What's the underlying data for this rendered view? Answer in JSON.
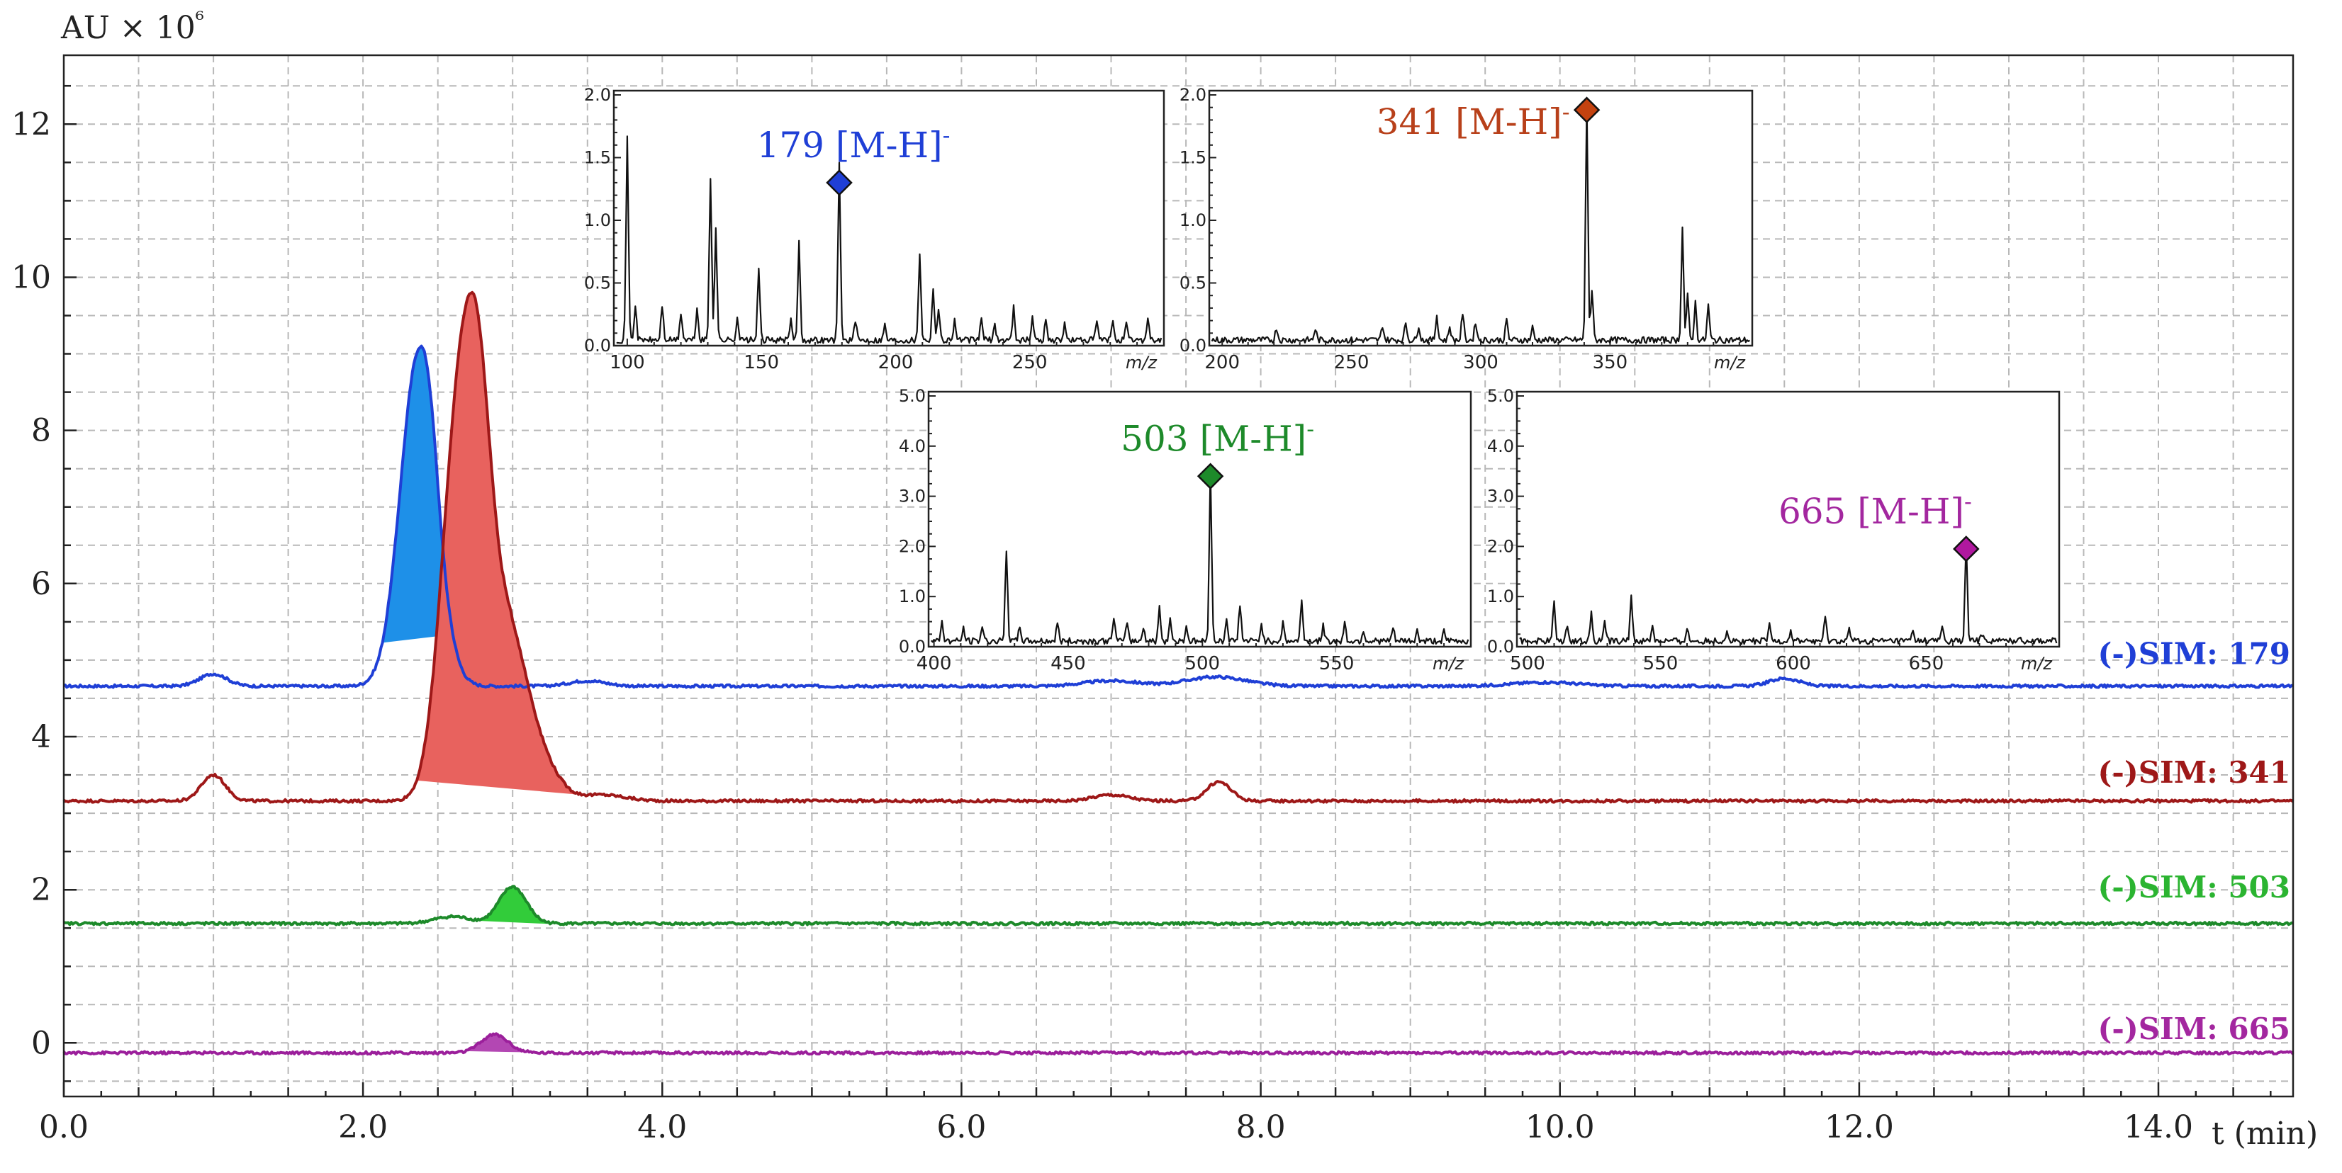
{
  "chart_data": {
    "type": "line",
    "title": "",
    "xlabel": "t (min)",
    "ylabel": "AU × 10⁶",
    "xlim": [
      0,
      14.9
    ],
    "ylim": [
      -0.7,
      12.9
    ],
    "x_ticks": [
      0,
      2,
      4,
      6,
      8,
      10,
      12,
      14
    ],
    "x_tick_labels": [
      "0.0",
      "2.0",
      "4.0",
      "6.0",
      "8.0",
      "10.0",
      "12.0",
      "14.0"
    ],
    "y_ticks": [
      0,
      2,
      4,
      6,
      8,
      10,
      12
    ],
    "y_tick_labels": [
      "0",
      "2",
      "4",
      "6",
      "8",
      "10",
      "12"
    ],
    "grid": true,
    "series": [
      {
        "name": "(-)SIM: 179",
        "color": "#1f3fd6",
        "fill": "#1e90e8",
        "baseline": 4.66,
        "bumps": [
          [
            1.0,
            0.16,
            0.09
          ],
          [
            2.37,
            4.3,
            0.12
          ],
          [
            2.45,
            0.4,
            0.05
          ],
          [
            3.5,
            0.07,
            0.12
          ],
          [
            7.0,
            0.07,
            0.18
          ],
          [
            7.7,
            0.12,
            0.2
          ],
          [
            9.9,
            0.05,
            0.22
          ],
          [
            11.5,
            0.1,
            0.1
          ]
        ],
        "fill_range": [
          2.12,
          2.6
        ]
      },
      {
        "name": "(-)SIM: 341",
        "color": "#9e1818",
        "fill": "#e8625e",
        "baseline": 3.16,
        "bumps": [
          [
            1.0,
            0.34,
            0.08
          ],
          [
            2.65,
            5.2,
            0.12
          ],
          [
            2.78,
            2.2,
            0.08
          ],
          [
            2.95,
            2.3,
            0.14
          ],
          [
            3.2,
            0.35,
            0.12
          ],
          [
            3.6,
            0.08,
            0.15
          ],
          [
            7.0,
            0.08,
            0.12
          ],
          [
            7.72,
            0.25,
            0.08
          ]
        ],
        "fill_range": [
          2.35,
          3.5
        ]
      },
      {
        "name": "(-)SIM: 503",
        "color": "#1d8a2a",
        "fill": "#32cc3a",
        "baseline": 1.56,
        "bumps": [
          [
            2.6,
            0.09,
            0.12
          ],
          [
            3.0,
            0.48,
            0.09
          ]
        ],
        "fill_range": [
          2.75,
          3.25
        ]
      },
      {
        "name": "(-)SIM: 665",
        "color": "#9b1f9b",
        "fill": "#b347b3",
        "baseline": -0.13,
        "bumps": [
          [
            2.88,
            0.24,
            0.09
          ]
        ],
        "fill_range": [
          2.65,
          3.15
        ]
      }
    ],
    "series_labels": [
      {
        "text": "(-)SIM: 179",
        "color": "#1f3fd6",
        "y": 4.95
      },
      {
        "text": "(-)SIM: 341",
        "color": "#9e1818",
        "y": 3.4
      },
      {
        "text": "(-)SIM: 503",
        "color": "#2bb431",
        "y": 1.9
      },
      {
        "text": "(-)SIM: 665",
        "color": "#a3279f",
        "y": 0.05
      }
    ],
    "insets": [
      {
        "annotation": "179 [M-H]-",
        "annotation_main": "179 [M-H]",
        "annotation_sup": "-",
        "color": "#1f3fd6",
        "marker_color": "#1f3fd6",
        "xlabel": "m/z",
        "xlim": [
          95,
          300
        ],
        "ylim": [
          0,
          2.0
        ],
        "x_ticks": [
          100,
          150,
          200,
          250
        ],
        "x_tick_labels": [
          "100",
          "150",
          "200",
          "250"
        ],
        "y_ticks": [
          0,
          0.5,
          1.0,
          1.5,
          2.0
        ],
        "y_tick_labels": [
          "0.0",
          "0.5",
          "1.0",
          "1.5",
          "2.0"
        ],
        "marker": [
          179,
          1.3
        ],
        "peaks": [
          [
            100,
            1.6
          ],
          [
            103,
            0.28
          ],
          [
            113,
            0.28
          ],
          [
            120,
            0.22
          ],
          [
            126,
            0.25
          ],
          [
            131,
            1.3
          ],
          [
            133,
            0.9
          ],
          [
            141,
            0.18
          ],
          [
            149,
            0.55
          ],
          [
            161,
            0.15
          ],
          [
            164,
            0.78
          ],
          [
            179,
            1.4
          ],
          [
            185,
            0.15
          ],
          [
            196,
            0.12
          ],
          [
            209,
            0.7
          ],
          [
            214,
            0.42
          ],
          [
            216,
            0.25
          ],
          [
            222,
            0.16
          ],
          [
            232,
            0.18
          ],
          [
            237,
            0.12
          ],
          [
            244,
            0.26
          ],
          [
            251,
            0.18
          ],
          [
            256,
            0.16
          ],
          [
            263,
            0.12
          ],
          [
            275,
            0.15
          ],
          [
            281,
            0.15
          ],
          [
            286,
            0.12
          ],
          [
            294,
            0.18
          ]
        ]
      },
      {
        "annotation": "341 [M-H]-",
        "annotation_main": "341 [M-H]",
        "annotation_sup": "-",
        "color": "#b8401a",
        "marker_color": "#c4420f",
        "xlabel": "m/z",
        "xlim": [
          195,
          405
        ],
        "ylim": [
          0,
          2.0
        ],
        "x_ticks": [
          200,
          250,
          300,
          350
        ],
        "x_tick_labels": [
          "200",
          "250",
          "300",
          "350"
        ],
        "y_ticks": [
          0,
          0.5,
          1.0,
          1.5,
          2.0
        ],
        "y_tick_labels": [
          "0.0",
          "0.5",
          "1.0",
          "1.5",
          "2.0"
        ],
        "marker": [
          341,
          1.88
        ],
        "peaks": [
          [
            221,
            0.1
          ],
          [
            236,
            0.09
          ],
          [
            262,
            0.12
          ],
          [
            271,
            0.14
          ],
          [
            276,
            0.12
          ],
          [
            283,
            0.2
          ],
          [
            288,
            0.11
          ],
          [
            293,
            0.22
          ],
          [
            298,
            0.15
          ],
          [
            310,
            0.16
          ],
          [
            320,
            0.1
          ],
          [
            341,
            1.88
          ],
          [
            343,
            0.4
          ],
          [
            378,
            0.9
          ],
          [
            380,
            0.35
          ],
          [
            383,
            0.3
          ],
          [
            388,
            0.28
          ]
        ]
      },
      {
        "annotation": "503 [M-H]-",
        "annotation_main": "503 [M-H]",
        "annotation_sup": "-",
        "color": "#1d8a2a",
        "marker_color": "#1d8a2a",
        "xlabel": "m/z",
        "xlim": [
          398,
          600
        ],
        "ylim": [
          0,
          5.0
        ],
        "x_ticks": [
          400,
          450,
          500,
          550
        ],
        "x_tick_labels": [
          "400",
          "450",
          "500",
          "550"
        ],
        "y_ticks": [
          0,
          1.0,
          2.0,
          3.0,
          4.0,
          5.0
        ],
        "y_tick_labels": [
          "0.0",
          "1.0",
          "2.0",
          "3.0",
          "4.0",
          "5.0"
        ],
        "marker": [
          503,
          3.4
        ],
        "peaks": [
          [
            403,
            0.4
          ],
          [
            411,
            0.25
          ],
          [
            418,
            0.3
          ],
          [
            427,
            1.85
          ],
          [
            432,
            0.3
          ],
          [
            446,
            0.35
          ],
          [
            467,
            0.5
          ],
          [
            472,
            0.4
          ],
          [
            478,
            0.3
          ],
          [
            484,
            0.65
          ],
          [
            488,
            0.45
          ],
          [
            494,
            0.3
          ],
          [
            503,
            3.45
          ],
          [
            509,
            0.45
          ],
          [
            514,
            0.75
          ],
          [
            522,
            0.35
          ],
          [
            530,
            0.35
          ],
          [
            537,
            0.8
          ],
          [
            545,
            0.3
          ],
          [
            553,
            0.35
          ],
          [
            560,
            0.22
          ],
          [
            571,
            0.25
          ],
          [
            580,
            0.2
          ],
          [
            590,
            0.18
          ]
        ]
      },
      {
        "annotation": "665 [M-H]-",
        "annotation_main": "665 [M-H]",
        "annotation_sup": "-",
        "color": "#a3279f",
        "marker_color": "#b0189f",
        "xlabel": "m/z",
        "xlim": [
          496,
          700
        ],
        "ylim": [
          0,
          5.0
        ],
        "x_ticks": [
          500,
          550,
          600,
          650
        ],
        "x_tick_labels": [
          "500",
          "550",
          "600",
          "650"
        ],
        "y_ticks": [
          0,
          1.0,
          2.0,
          3.0,
          4.0,
          5.0
        ],
        "y_tick_labels": [
          "0.0",
          "1.0",
          "2.0",
          "3.0",
          "4.0",
          "5.0"
        ],
        "marker": [
          665,
          1.95
        ],
        "peaks": [
          [
            510,
            0.8
          ],
          [
            515,
            0.35
          ],
          [
            524,
            0.6
          ],
          [
            529,
            0.4
          ],
          [
            539,
            0.9
          ],
          [
            547,
            0.3
          ],
          [
            560,
            0.25
          ],
          [
            575,
            0.22
          ],
          [
            591,
            0.3
          ],
          [
            599,
            0.2
          ],
          [
            612,
            0.45
          ],
          [
            621,
            0.22
          ],
          [
            645,
            0.2
          ],
          [
            656,
            0.3
          ],
          [
            665,
            1.95
          ],
          [
            671,
            0.15
          ],
          [
            685,
            0.12
          ]
        ]
      }
    ]
  }
}
